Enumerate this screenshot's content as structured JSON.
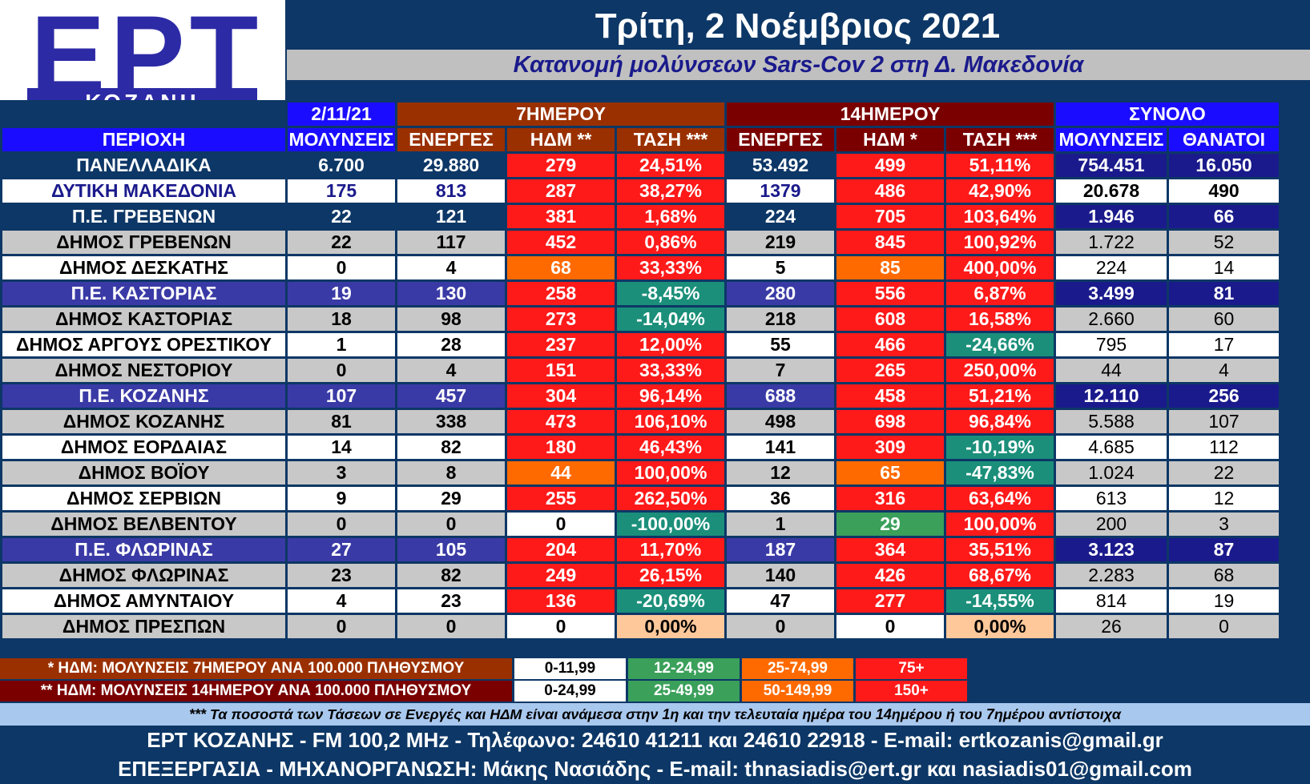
{
  "logo": {
    "letters": "ΕΡΤ",
    "city": "ΚΟΖΑΝΗ"
  },
  "title": "Τρίτη, 2 Νοέμβριος 2021",
  "subtitle": "Κατανομή μολύνσεων Sars-Cov 2 στη Δ. Μακεδονία",
  "header": {
    "date": "2/11/21",
    "group_7": "7ΗΜΕΡΟΥ",
    "group_14": "14ΗΜΕΡΟΥ",
    "group_total": "ΣΥΝΟΛΟ",
    "columns": [
      "ΠΕΡΙΟΧΗ",
      "ΜΟΛΥΝΣΕΙΣ",
      "ΕΝΕΡΓΕΣ",
      "ΗΔΜ **",
      "ΤΑΣΗ ***",
      "ΕΝΕΡΓΕΣ",
      "ΗΔΜ *",
      "ΤΑΣΗ ***",
      "ΜΟΛΥΝΣΕΙΣ",
      "ΘΑΝΑΤΟΙ"
    ]
  },
  "rows": [
    {
      "area": "ΠΑΝΕΛΛΑΔΙΚΑ",
      "style": "nat",
      "infections": "6.700",
      "active7": "29.880",
      "hdm7": "279",
      "c_hdm7": "red",
      "trend7": "24,51%",
      "c_trend7": "red",
      "active14": "53.492",
      "hdm14": "499",
      "c_hdm14": "red",
      "trend14": "51,11%",
      "c_trend14": "red",
      "total_inf": "754.451",
      "deaths": "16.050"
    },
    {
      "area": "ΔΥΤΙΚΗ ΜΑΚΕΔΟΝΙΑ",
      "style": "reg",
      "infections": "175",
      "active7": "813",
      "hdm7": "287",
      "c_hdm7": "red",
      "trend7": "38,27%",
      "c_trend7": "red",
      "active14": "1379",
      "hdm14": "486",
      "c_hdm14": "red",
      "trend14": "42,90%",
      "c_trend14": "red",
      "total_inf": "20.678",
      "deaths": "490"
    },
    {
      "area": "Π.Ε. ΓΡΕΒΕΝΩΝ",
      "style": "pe",
      "infections": "22",
      "active7": "121",
      "hdm7": "381",
      "c_hdm7": "red",
      "trend7": "1,68%",
      "c_trend7": "red",
      "active14": "224",
      "hdm14": "705",
      "c_hdm14": "red",
      "trend14": "103,64%",
      "c_trend14": "red",
      "total_inf": "1.946",
      "deaths": "66"
    },
    {
      "area": "ΔΗΜΟΣ ΓΡΕΒΕΝΩΝ",
      "style": "dg",
      "infections": "22",
      "active7": "117",
      "hdm7": "452",
      "c_hdm7": "red",
      "trend7": "0,86%",
      "c_trend7": "red",
      "active14": "219",
      "hdm14": "845",
      "c_hdm14": "red",
      "trend14": "100,92%",
      "c_trend14": "red",
      "total_inf": "1.722",
      "deaths": "52"
    },
    {
      "area": "ΔΗΜΟΣ ΔΕΣΚΑΤΗΣ",
      "style": "dw",
      "infections": "0",
      "active7": "4",
      "hdm7": "68",
      "c_hdm7": "orange",
      "trend7": "33,33%",
      "c_trend7": "red",
      "active14": "5",
      "hdm14": "85",
      "c_hdm14": "orange",
      "trend14": "400,00%",
      "c_trend14": "red",
      "total_inf": "224",
      "deaths": "14"
    },
    {
      "area": "Π.Ε. ΚΑΣΤΟΡΙΑΣ",
      "style": "pe2",
      "infections": "19",
      "active7": "130",
      "hdm7": "258",
      "c_hdm7": "red",
      "trend7": "-8,45%",
      "c_trend7": "teal",
      "active14": "280",
      "hdm14": "556",
      "c_hdm14": "red",
      "trend14": "6,87%",
      "c_trend14": "red",
      "total_inf": "3.499",
      "deaths": "81"
    },
    {
      "area": "ΔΗΜΟΣ ΚΑΣΤΟΡΙΑΣ",
      "style": "dg",
      "infections": "18",
      "active7": "98",
      "hdm7": "273",
      "c_hdm7": "red",
      "trend7": "-14,04%",
      "c_trend7": "teal",
      "active14": "218",
      "hdm14": "608",
      "c_hdm14": "red",
      "trend14": "16,58%",
      "c_trend14": "red",
      "total_inf": "2.660",
      "deaths": "60"
    },
    {
      "area": "ΔΗΜΟΣ ΑΡΓΟΥΣ ΟΡΕΣΤΙΚΟΥ",
      "style": "dw",
      "infections": "1",
      "active7": "28",
      "hdm7": "237",
      "c_hdm7": "red",
      "trend7": "12,00%",
      "c_trend7": "red",
      "active14": "55",
      "hdm14": "466",
      "c_hdm14": "red",
      "trend14": "-24,66%",
      "c_trend14": "teal",
      "total_inf": "795",
      "deaths": "17"
    },
    {
      "area": "ΔΗΜΟΣ ΝΕΣΤΟΡΙΟΥ",
      "style": "dg",
      "infections": "0",
      "active7": "4",
      "hdm7": "151",
      "c_hdm7": "red",
      "trend7": "33,33%",
      "c_trend7": "red",
      "active14": "7",
      "hdm14": "265",
      "c_hdm14": "red",
      "trend14": "250,00%",
      "c_trend14": "red",
      "total_inf": "44",
      "deaths": "4"
    },
    {
      "area": "Π.Ε. ΚΟΖΑΝΗΣ",
      "style": "pe2",
      "infections": "107",
      "active7": "457",
      "hdm7": "304",
      "c_hdm7": "red",
      "trend7": "96,14%",
      "c_trend7": "red",
      "active14": "688",
      "hdm14": "458",
      "c_hdm14": "red",
      "trend14": "51,21%",
      "c_trend14": "red",
      "total_inf": "12.110",
      "deaths": "256"
    },
    {
      "area": "ΔΗΜΟΣ ΚΟΖΑΝΗΣ",
      "style": "dg",
      "infections": "81",
      "active7": "338",
      "hdm7": "473",
      "c_hdm7": "red",
      "trend7": "106,10%",
      "c_trend7": "red",
      "active14": "498",
      "hdm14": "698",
      "c_hdm14": "red",
      "trend14": "96,84%",
      "c_trend14": "red",
      "total_inf": "5.588",
      "deaths": "107"
    },
    {
      "area": "ΔΗΜΟΣ ΕΟΡΔΑΙΑΣ",
      "style": "dw",
      "infections": "14",
      "active7": "82",
      "hdm7": "180",
      "c_hdm7": "red",
      "trend7": "46,43%",
      "c_trend7": "red",
      "active14": "141",
      "hdm14": "309",
      "c_hdm14": "red",
      "trend14": "-10,19%",
      "c_trend14": "teal",
      "total_inf": "4.685",
      "deaths": "112"
    },
    {
      "area": "ΔΗΜΟΣ ΒΟΪΟΥ",
      "style": "dg",
      "infections": "3",
      "active7": "8",
      "hdm7": "44",
      "c_hdm7": "orange",
      "trend7": "100,00%",
      "c_trend7": "red",
      "active14": "12",
      "hdm14": "65",
      "c_hdm14": "orange",
      "trend14": "-47,83%",
      "c_trend14": "teal",
      "total_inf": "1.024",
      "deaths": "22"
    },
    {
      "area": "ΔΗΜΟΣ ΣΕΡΒΙΩΝ",
      "style": "dw",
      "infections": "9",
      "active7": "29",
      "hdm7": "255",
      "c_hdm7": "red",
      "trend7": "262,50%",
      "c_trend7": "red",
      "active14": "36",
      "hdm14": "316",
      "c_hdm14": "red",
      "trend14": "63,64%",
      "c_trend14": "red",
      "total_inf": "613",
      "deaths": "12"
    },
    {
      "area": "ΔΗΜΟΣ ΒΕΛΒΕΝΤΟΥ",
      "style": "dg",
      "infections": "0",
      "active7": "0",
      "hdm7": "0",
      "c_hdm7": "white",
      "trend7": "-100,00%",
      "c_trend7": "teal",
      "active14": "1",
      "hdm14": "29",
      "c_hdm14": "green",
      "trend14": "100,00%",
      "c_trend14": "red",
      "total_inf": "200",
      "deaths": "3"
    },
    {
      "area": "Π.Ε. ΦΛΩΡΙΝΑΣ",
      "style": "pe2",
      "infections": "27",
      "active7": "105",
      "hdm7": "204",
      "c_hdm7": "red",
      "trend7": "11,70%",
      "c_trend7": "red",
      "active14": "187",
      "hdm14": "364",
      "c_hdm14": "red",
      "trend14": "35,51%",
      "c_trend14": "red",
      "total_inf": "3.123",
      "deaths": "87"
    },
    {
      "area": "ΔΗΜΟΣ ΦΛΩΡΙΝΑΣ",
      "style": "dg",
      "infections": "23",
      "active7": "82",
      "hdm7": "249",
      "c_hdm7": "red",
      "trend7": "26,15%",
      "c_trend7": "red",
      "active14": "140",
      "hdm14": "426",
      "c_hdm14": "red",
      "trend14": "68,67%",
      "c_trend14": "red",
      "total_inf": "2.283",
      "deaths": "68"
    },
    {
      "area": "ΔΗΜΟΣ ΑΜΥΝΤΑΙΟΥ",
      "style": "dw",
      "infections": "4",
      "active7": "23",
      "hdm7": "136",
      "c_hdm7": "red",
      "trend7": "-20,69%",
      "c_trend7": "teal",
      "active14": "47",
      "hdm14": "277",
      "c_hdm14": "red",
      "trend14": "-14,55%",
      "c_trend14": "teal",
      "total_inf": "814",
      "deaths": "19"
    },
    {
      "area": "ΔΗΜΟΣ ΠΡΕΣΠΩΝ",
      "style": "dg",
      "infections": "0",
      "active7": "0",
      "hdm7": "0",
      "c_hdm7": "white",
      "trend7": "0,00%",
      "c_trend7": "peach",
      "active14": "0",
      "hdm14": "0",
      "c_hdm14": "white",
      "trend14": "0,00%",
      "c_trend14": "peach",
      "total_inf": "26",
      "deaths": "0"
    }
  ],
  "legend": {
    "row7": {
      "label": "* ΗΔΜ: ΜΟΛΥΝΣΕΙΣ 7ΗΜΕΡΟΥ ΑΝΑ 100.000 ΠΛΗΘΥΣΜΟΥ",
      "ranges": [
        "0-11,99",
        "12-24,99",
        "25-74,99",
        "75+"
      ]
    },
    "row14": {
      "label": "** ΗΔΜ: ΜΟΛΥΝΣΕΙΣ 14ΗΜΕΡΟΥ ΑΝΑ 100.000 ΠΛΗΘΥΣΜΟΥ",
      "ranges": [
        "0-24,99",
        "25-49,99",
        "50-149,99",
        "150+"
      ]
    }
  },
  "note": "*** Τα ποσοστά των Τάσεων σε Ενεργές και ΗΔΜ είναι ανάμεσα στην 1η και την τελευταία ημέρα του 14ημέρου ή του 7ημέρου αντίστοιχα",
  "footer": {
    "line1": "ΕΡΤ ΚΟΖΑΝΗΣ - FM 100,2 MHz - Τηλέφωνο:  24610 41211 και 24610 22918 - E-mail: ertkozanis@gmail.gr",
    "line2": "ΕΠΕΞΕΡΓΑΣΙΑ  -  ΜΗΧΑΝΟΡΓΑΝΩΣΗ: Μάκης Νασιάδης  -   E-mail: thnasiadis@ert.gr και nasiadis01@gmail.com"
  }
}
